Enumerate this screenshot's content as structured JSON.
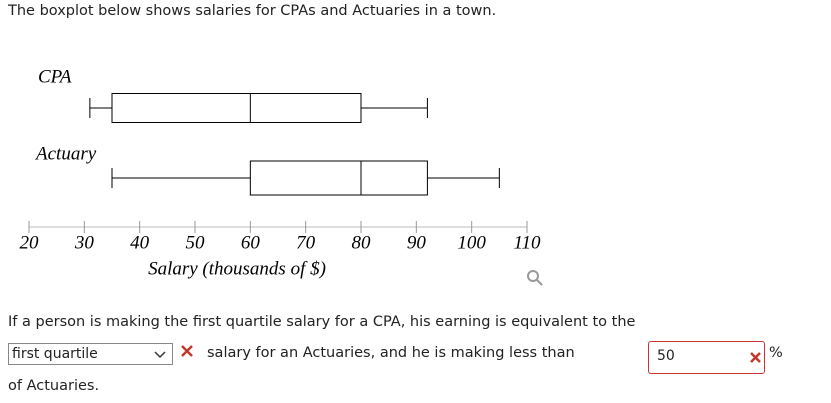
{
  "header": {
    "title": "The boxplot below shows salaries for CPAs and Actuaries in a town."
  },
  "chart_data": {
    "type": "boxplot",
    "categories": [
      "CPA",
      "Actuary"
    ],
    "min": [
      31,
      35
    ],
    "q1": [
      35,
      60
    ],
    "median": [
      60,
      80
    ],
    "q3": [
      80,
      92
    ],
    "max": [
      92,
      105
    ],
    "xlabel": "Salary (thousands of $)",
    "xlim": [
      20,
      110
    ],
    "xticks": [
      20,
      30,
      40,
      50,
      60,
      70,
      80,
      90,
      100,
      110
    ],
    "color": "#000000"
  },
  "question": {
    "text1": "If a person is making the first quartile salary for a CPA, his earning is equivalent to the",
    "select": "first quartile",
    "text2": "salary for an Actuaries, and he is making less than",
    "input": "50",
    "unit": "%",
    "text3": "of Actuaries."
  }
}
